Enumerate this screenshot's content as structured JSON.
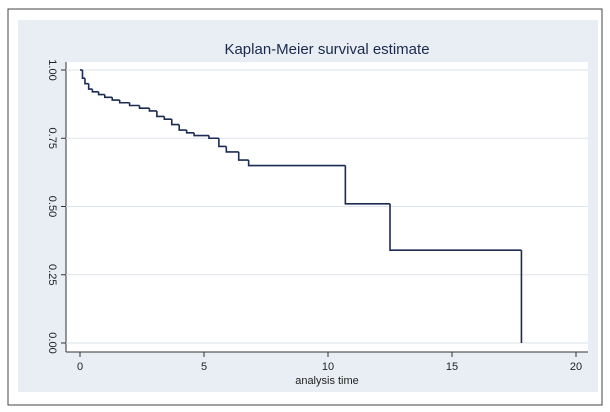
{
  "chart_data": {
    "type": "line",
    "step": "post",
    "title": "Kaplan-Meier survival estimate",
    "x_label": "analysis time",
    "x": [
      0,
      0.1,
      0.2,
      0.35,
      0.5,
      0.75,
      1,
      1.3,
      1.6,
      2,
      2.4,
      2.8,
      3.1,
      3.4,
      3.7,
      4,
      4.3,
      4.6,
      5.2,
      5.6,
      5.9,
      6.4,
      6.8,
      10.7,
      12.5,
      17.8
    ],
    "series": [
      {
        "color": "#1c2b52",
        "values": [
          1.0,
          0.97,
          0.95,
          0.93,
          0.92,
          0.91,
          0.9,
          0.89,
          0.88,
          0.87,
          0.86,
          0.85,
          0.83,
          0.82,
          0.8,
          0.78,
          0.77,
          0.76,
          0.75,
          0.72,
          0.7,
          0.67,
          0.65,
          0.51,
          0.34,
          0.0
        ]
      }
    ],
    "xlim": [
      0,
      20
    ],
    "xticks": [
      0,
      5,
      10,
      15,
      20
    ],
    "ylim": [
      0,
      1
    ],
    "yticks": [
      {
        "value": 0,
        "label": "0.00"
      },
      {
        "value": 0.25,
        "label": "0.25"
      },
      {
        "value": 0.5,
        "label": "0.50"
      },
      {
        "value": 0.75,
        "label": "0.75"
      },
      {
        "value": 1,
        "label": "1.00"
      }
    ],
    "grid": true
  }
}
